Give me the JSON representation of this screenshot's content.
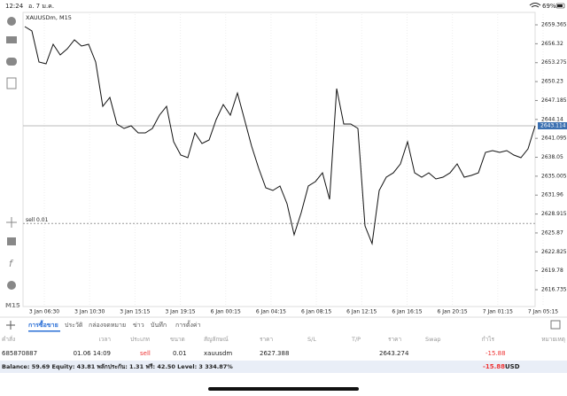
{
  "status": {
    "time": "12:24",
    "date": "อ. 7 ม.ค.",
    "battery": "69%"
  },
  "chart": {
    "symbol": "XAUUSDm, M15",
    "timeframe": "M15",
    "order_label": "sell 0.01",
    "ylim": [
      2614.17,
      2661.08
    ],
    "yticks": [
      2659.365,
      2656.32,
      2653.275,
      2650.23,
      2647.185,
      2644.14,
      2641.095,
      2638.05,
      2635.005,
      2631.96,
      2628.915,
      2625.87,
      2622.825,
      2619.78,
      2616.735
    ],
    "current_price": 2643.114,
    "x_labels": [
      "3 Jan 06:30",
      "3 Jan 10:30",
      "3 Jan 15:15",
      "3 Jan 19:15",
      "6 Jan 00:15",
      "6 Jan 04:15",
      "6 Jan 08:15",
      "6 Jan 12:15",
      "6 Jan 16:15",
      "6 Jan 20:15",
      "7 Jan 01:15",
      "7 Jan 05:15"
    ],
    "values": [
      2659.08,
      2658.37,
      2653.38,
      2653.09,
      2656.23,
      2654.52,
      2655.52,
      2656.94,
      2655.95,
      2656.23,
      2653.38,
      2646.25,
      2647.68,
      2643.4,
      2642.69,
      2643.11,
      2641.97,
      2641.97,
      2642.69,
      2644.82,
      2646.25,
      2640.55,
      2638.41,
      2637.98,
      2641.97,
      2640.26,
      2640.83,
      2644.11,
      2646.53,
      2644.82,
      2648.39,
      2644.11,
      2639.83,
      2636.27,
      2633.13,
      2632.7,
      2633.42,
      2630.56,
      2625.57,
      2629.14,
      2633.42,
      2634.13,
      2635.55,
      2631.28,
      2649.1,
      2643.4,
      2643.4,
      2642.69,
      2627.0,
      2624.15,
      2632.7,
      2634.84,
      2635.55,
      2636.98,
      2640.55,
      2635.55,
      2634.84,
      2635.55,
      2634.56,
      2634.84,
      2635.55,
      2636.98,
      2634.84,
      2635.13,
      2635.55,
      2638.84,
      2639.12,
      2638.84,
      2639.12,
      2638.41,
      2637.98,
      2639.41,
      2643.11
    ]
  },
  "tabs": [
    "การซื้อขาย",
    "ประวัติ",
    "กล่องจดหมาย",
    "ข่าว",
    "บันทึก",
    "การตั้งค่า"
  ],
  "table": {
    "headers": [
      "คำสั่ง",
      "เวลา",
      "ประเภท",
      "ขนาด",
      "สัญลักษณ์",
      "ราคา",
      "S/L",
      "T/P",
      "ราคา",
      "Swap",
      "กำไร",
      "หมายเหตุ"
    ],
    "rows": [
      {
        "order": 685870887,
        "time": "01.06 14:09",
        "type": "sell",
        "volume": 0.01,
        "symbol": "xauusdm",
        "open_price": 2627.388,
        "price": 2643.274,
        "profit": -15.88
      }
    ]
  },
  "balance": {
    "text": "Balance: 59.69 Equity: 43.81 พลักประกัน: 1.31 ฟรี: 42.50 Level: 3 334.87%",
    "profit": -15.88,
    "currency": "USD"
  }
}
